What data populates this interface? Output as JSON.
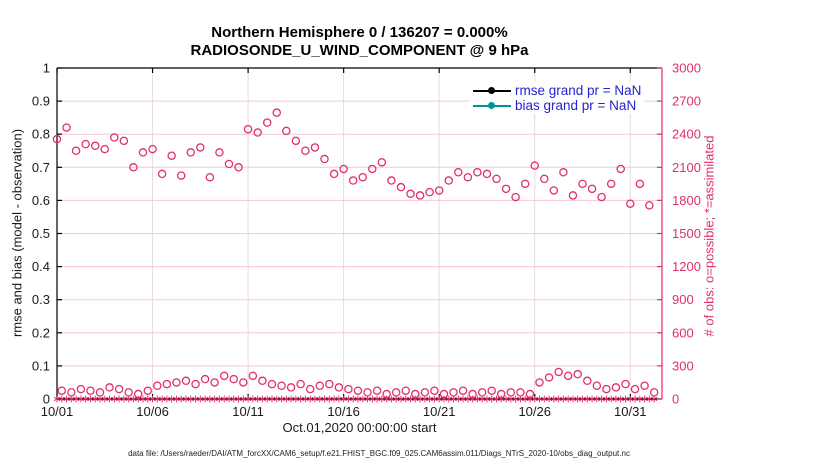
{
  "figure": {
    "title_line1": "Northern Hemisphere 0 / 136207 = 0.000%",
    "title_line2": "RADIOSONDE_U_WIND_COMPONENT @ 9 hPa",
    "xlabel": "Oct.01,2020 00:00:00 start",
    "ylabel_left": "rmse and bias (model - observation)",
    "ylabel_right": "# of obs: o=possible; *=assimilated",
    "footer": "data file: /Users/raeder/DAI/ATM_forcXX/CAM6_setup/f.e21.FHIST_BGC.f09_025.CAM6assim.011/Diags_NTrS_2020-10/obs_diag_output.nc"
  },
  "legend": {
    "text_color": "#2424cf",
    "items": [
      {
        "label": "rmse grand pr = NaN",
        "color": "#000000"
      },
      {
        "label": "bias grand pr = NaN",
        "color": "#009494"
      }
    ]
  },
  "colors": {
    "obs": "#e0306a",
    "grid_h": "#f4c8d6",
    "grid_v": "#e8d9dc",
    "axis": "#000000",
    "tick_text": "#1a1a1a"
  },
  "chart_data": {
    "type": "scatter",
    "title": "Northern Hemisphere 0 / 136207 = 0.000% | RADIOSONDE_U_WIND_COMPONENT @ 9 hPa",
    "xlabel": "Oct.01,2020 00:00:00 start",
    "ylabel_left": "rmse and bias (model - observation)",
    "ylabel_right": "# of obs: o=possible; *=assimilated",
    "grid": true,
    "legend_position": "top-right-inside",
    "xlim": [
      1,
      32.66
    ],
    "ylim_left": [
      0,
      1
    ],
    "ylim_right": [
      0,
      3000
    ],
    "xticks": [
      {
        "v": 1,
        "label": "10/01"
      },
      {
        "v": 6,
        "label": "10/06"
      },
      {
        "v": 11,
        "label": "10/11"
      },
      {
        "v": 16,
        "label": "10/16"
      },
      {
        "v": 21,
        "label": "10/21"
      },
      {
        "v": 26,
        "label": "10/26"
      },
      {
        "v": 31,
        "label": "10/31"
      }
    ],
    "yticks_left": [
      {
        "v": 0,
        "label": "0"
      },
      {
        "v": 0.1,
        "label": "0.1"
      },
      {
        "v": 0.2,
        "label": "0.2"
      },
      {
        "v": 0.3,
        "label": "0.3"
      },
      {
        "v": 0.4,
        "label": "0.4"
      },
      {
        "v": 0.5,
        "label": "0.5"
      },
      {
        "v": 0.6,
        "label": "0.6"
      },
      {
        "v": 0.7,
        "label": "0.7"
      },
      {
        "v": 0.8,
        "label": "0.8"
      },
      {
        "v": 0.9,
        "label": "0.9"
      },
      {
        "v": 1,
        "label": "1"
      }
    ],
    "yticks_right": [
      {
        "v": 0,
        "label": "0"
      },
      {
        "v": 300,
        "label": "300"
      },
      {
        "v": 600,
        "label": "600"
      },
      {
        "v": 900,
        "label": "900"
      },
      {
        "v": 1200,
        "label": "1200"
      },
      {
        "v": 1500,
        "label": "1500"
      },
      {
        "v": 1800,
        "label": "1800"
      },
      {
        "v": 2100,
        "label": "2100"
      },
      {
        "v": 2400,
        "label": "2400"
      },
      {
        "v": 2700,
        "label": "2700"
      },
      {
        "v": 3000,
        "label": "3000"
      }
    ],
    "series": [
      {
        "name": "possible-obs",
        "marker": "o",
        "axis": "right",
        "x_start": 1,
        "x_step": 0.25,
        "y": [
          2355,
          75,
          2460,
          60,
          2250,
          90,
          2310,
          75,
          2295,
          60,
          2265,
          105,
          2370,
          90,
          2340,
          60,
          2100,
          45,
          2235,
          75,
          2265,
          120,
          2040,
          135,
          2205,
          150,
          2025,
          165,
          2235,
          135,
          2280,
          180,
          2010,
          150,
          2235,
          210,
          2130,
          180,
          2100,
          150,
          2445,
          210,
          2415,
          165,
          2505,
          135,
          2595,
          120,
          2430,
          105,
          2340,
          135,
          2250,
          90,
          2280,
          120,
          2175,
          135,
          2040,
          105,
          2085,
          90,
          1980,
          75,
          2010,
          60,
          2085,
          75,
          2145,
          45,
          1980,
          60,
          1920,
          75,
          1860,
          45,
          1845,
          60,
          1875,
          75,
          1890,
          45,
          1980,
          60,
          2055,
          75,
          2010,
          45,
          2055,
          60,
          2040,
          75,
          1995,
          45,
          1905,
          60,
          1830,
          60,
          1950,
          45,
          2115,
          150,
          1995,
          195,
          1890,
          245,
          2055,
          210,
          1845,
          225,
          1950,
          165,
          1905,
          120,
          1830,
          90,
          1950,
          105,
          2085,
          135,
          1770,
          90,
          1950,
          120,
          1755,
          60
        ]
      },
      {
        "name": "assimilated-obs",
        "marker": "*",
        "axis": "right",
        "x_start": 1,
        "x_step": 0.25,
        "count": 126,
        "y_const": 0
      }
    ]
  }
}
